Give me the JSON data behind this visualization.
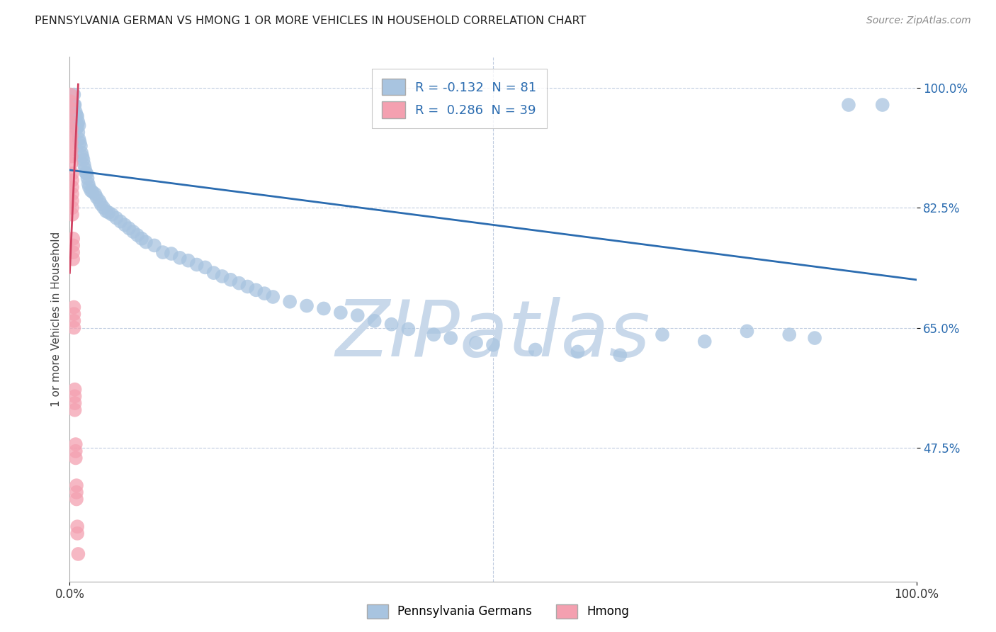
{
  "title": "PENNSYLVANIA GERMAN VS HMONG 1 OR MORE VEHICLES IN HOUSEHOLD CORRELATION CHART",
  "source_text": "Source: ZipAtlas.com",
  "ylabel": "1 or more Vehicles in Household",
  "xlim": [
    0.0,
    1.0
  ],
  "ylim": [
    0.28,
    1.045
  ],
  "blue_color": "#a8c4e0",
  "pink_color": "#f4a0b0",
  "blue_line_color": "#2b6cb0",
  "pink_line_color": "#d04060",
  "legend_blue_label": "R = -0.132  N = 81",
  "legend_pink_label": "R =  0.286  N = 39",
  "watermark": "ZIPatlas",
  "watermark_color": "#c8d8ea",
  "blue_scatter_x": [
    0.005,
    0.005,
    0.006,
    0.006,
    0.007,
    0.007,
    0.008,
    0.008,
    0.009,
    0.009,
    0.01,
    0.01,
    0.011,
    0.011,
    0.012,
    0.013,
    0.014,
    0.015,
    0.016,
    0.017,
    0.018,
    0.019,
    0.02,
    0.021,
    0.022,
    0.023,
    0.025,
    0.027,
    0.03,
    0.032,
    0.035,
    0.037,
    0.04,
    0.043,
    0.046,
    0.05,
    0.055,
    0.06,
    0.065,
    0.07,
    0.075,
    0.08,
    0.085,
    0.09,
    0.1,
    0.11,
    0.12,
    0.13,
    0.14,
    0.15,
    0.16,
    0.17,
    0.18,
    0.19,
    0.2,
    0.21,
    0.22,
    0.23,
    0.24,
    0.26,
    0.28,
    0.3,
    0.32,
    0.34,
    0.36,
    0.38,
    0.4,
    0.43,
    0.45,
    0.48,
    0.5,
    0.55,
    0.6,
    0.65,
    0.7,
    0.75,
    0.8,
    0.85,
    0.88,
    0.92,
    0.96
  ],
  "blue_scatter_y": [
    0.975,
    0.99,
    0.96,
    0.975,
    0.95,
    0.965,
    0.94,
    0.96,
    0.945,
    0.958,
    0.935,
    0.95,
    0.925,
    0.945,
    0.92,
    0.915,
    0.905,
    0.9,
    0.895,
    0.888,
    0.882,
    0.876,
    0.875,
    0.868,
    0.86,
    0.855,
    0.85,
    0.848,
    0.845,
    0.84,
    0.835,
    0.83,
    0.825,
    0.82,
    0.818,
    0.815,
    0.81,
    0.805,
    0.8,
    0.795,
    0.79,
    0.785,
    0.78,
    0.775,
    0.77,
    0.76,
    0.758,
    0.752,
    0.748,
    0.742,
    0.738,
    0.73,
    0.725,
    0.72,
    0.715,
    0.71,
    0.705,
    0.7,
    0.695,
    0.688,
    0.682,
    0.678,
    0.672,
    0.668,
    0.66,
    0.655,
    0.648,
    0.64,
    0.635,
    0.628,
    0.625,
    0.618,
    0.615,
    0.61,
    0.64,
    0.63,
    0.645,
    0.64,
    0.635,
    0.975,
    0.975
  ],
  "pink_scatter_x": [
    0.001,
    0.001,
    0.001,
    0.001,
    0.001,
    0.002,
    0.002,
    0.002,
    0.002,
    0.002,
    0.002,
    0.003,
    0.003,
    0.003,
    0.003,
    0.003,
    0.003,
    0.003,
    0.004,
    0.004,
    0.004,
    0.004,
    0.005,
    0.005,
    0.005,
    0.005,
    0.006,
    0.006,
    0.006,
    0.006,
    0.007,
    0.007,
    0.007,
    0.008,
    0.008,
    0.008,
    0.009,
    0.009,
    0.01
  ],
  "pink_scatter_y": [
    0.99,
    0.98,
    0.97,
    0.96,
    0.95,
    0.94,
    0.93,
    0.92,
    0.91,
    0.9,
    0.89,
    0.875,
    0.865,
    0.855,
    0.845,
    0.835,
    0.825,
    0.815,
    0.78,
    0.77,
    0.76,
    0.75,
    0.68,
    0.67,
    0.66,
    0.65,
    0.56,
    0.55,
    0.54,
    0.53,
    0.48,
    0.47,
    0.46,
    0.42,
    0.41,
    0.4,
    0.36,
    0.35,
    0.32
  ],
  "blue_trendline_x": [
    0.0,
    1.0
  ],
  "blue_trendline_y": [
    0.88,
    0.72
  ],
  "pink_trendline_x": [
    0.0,
    0.01
  ],
  "pink_trendline_y": [
    0.73,
    1.005
  ],
  "fig_width": 14.06,
  "fig_height": 8.92,
  "dpi": 100
}
